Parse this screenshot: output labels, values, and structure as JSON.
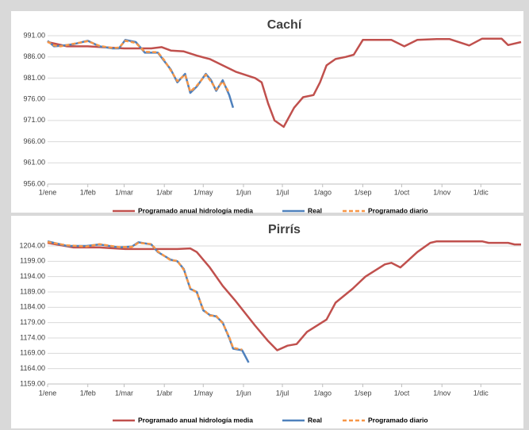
{
  "chart_data": [
    {
      "type": "line",
      "title": "Cachí",
      "xlim": [
        0,
        365
      ],
      "xticks": [
        {
          "value": 0,
          "label": "1/ene"
        },
        {
          "value": 31,
          "label": "1/feb"
        },
        {
          "value": 59,
          "label": "1/mar"
        },
        {
          "value": 90,
          "label": "1/abr"
        },
        {
          "value": 120,
          "label": "1/may"
        },
        {
          "value": 151,
          "label": "1/jun"
        },
        {
          "value": 181,
          "label": "1/jul"
        },
        {
          "value": 212,
          "label": "1/ago"
        },
        {
          "value": 243,
          "label": "1/sep"
        },
        {
          "value": 273,
          "label": "1/oct"
        },
        {
          "value": 304,
          "label": "1/nov"
        },
        {
          "value": 334,
          "label": "1/dic"
        }
      ],
      "ylim": [
        956,
        991
      ],
      "yticks": [
        {
          "value": 956,
          "label": "956.00"
        },
        {
          "value": 961,
          "label": "961.00"
        },
        {
          "value": 966,
          "label": "966.00"
        },
        {
          "value": 971,
          "label": "971.00"
        },
        {
          "value": 976,
          "label": "976.00"
        },
        {
          "value": 981,
          "label": "981.00"
        },
        {
          "value": 986,
          "label": "986.00"
        },
        {
          "value": 991,
          "label": "991.00"
        }
      ],
      "grid": true,
      "legend": "bottom",
      "series": [
        {
          "name": "Programado anual hidrología media",
          "color": "#c0504d",
          "dashed": false,
          "x": [
            0,
            15,
            31,
            59,
            80,
            88,
            95,
            105,
            115,
            125,
            135,
            145,
            160,
            165,
            170,
            175,
            182,
            190,
            197,
            205,
            210,
            215,
            222,
            230,
            236,
            243,
            255,
            265,
            275,
            285,
            300,
            310,
            325,
            335,
            350,
            355,
            365
          ],
          "values": [
            989.5,
            988.5,
            988.5,
            988,
            988,
            988.3,
            987.5,
            987.3,
            986.3,
            985.5,
            984,
            982.5,
            981,
            980,
            975,
            971,
            969.5,
            974,
            976.5,
            977,
            980,
            984,
            985.5,
            986,
            986.5,
            990,
            990,
            990,
            988.5,
            990,
            990.2,
            990.2,
            988.7,
            990.3,
            990.3,
            988.8,
            989.5
          ]
        },
        {
          "name": "Real",
          "color": "#4f81bd",
          "dashed": false,
          "x": [
            0,
            5,
            10,
            20,
            31,
            40,
            50,
            55,
            60,
            68,
            75,
            85,
            90,
            95,
            100,
            106,
            110,
            115,
            122,
            126,
            130,
            135,
            140,
            143
          ],
          "values": [
            989.8,
            988.5,
            988.6,
            989,
            989.8,
            988.5,
            988,
            988,
            990,
            989.5,
            987,
            987,
            985,
            983,
            980,
            982,
            977.5,
            979,
            982,
            980.5,
            978,
            980.5,
            977,
            974
          ]
        },
        {
          "name": "Programado diario",
          "color": "#f79646",
          "dashed": true,
          "x": [
            0,
            5,
            10,
            20,
            31,
            40,
            50,
            55,
            60,
            68,
            75,
            85,
            90,
            95,
            100,
            106,
            110,
            115,
            122,
            126,
            130,
            135,
            140
          ],
          "values": [
            989.6,
            988.7,
            988.5,
            989.1,
            989.7,
            988.6,
            988.1,
            988.2,
            989.8,
            989.3,
            987.2,
            987.1,
            985.2,
            982.8,
            980.3,
            981.8,
            977.8,
            979.2,
            981.8,
            980.2,
            978.3,
            980.2,
            977.5
          ]
        }
      ]
    },
    {
      "type": "line",
      "title": "Pirrís",
      "xlim": [
        0,
        365
      ],
      "xticks": [
        {
          "value": 0,
          "label": "1/ene"
        },
        {
          "value": 31,
          "label": "1/feb"
        },
        {
          "value": 59,
          "label": "1/mar"
        },
        {
          "value": 90,
          "label": "1/abr"
        },
        {
          "value": 120,
          "label": "1/may"
        },
        {
          "value": 151,
          "label": "1/jun"
        },
        {
          "value": 181,
          "label": "1/jul"
        },
        {
          "value": 212,
          "label": "1/ago"
        },
        {
          "value": 243,
          "label": "1/sep"
        },
        {
          "value": 273,
          "label": "1/oct"
        },
        {
          "value": 304,
          "label": "1/nov"
        },
        {
          "value": 334,
          "label": "1/dic"
        }
      ],
      "ylim": [
        1159,
        1204
      ],
      "yticks": [
        {
          "value": 1159,
          "label": "1159.00"
        },
        {
          "value": 1164,
          "label": "1164.00"
        },
        {
          "value": 1169,
          "label": "1169.00"
        },
        {
          "value": 1174,
          "label": "1174.00"
        },
        {
          "value": 1179,
          "label": "1179.00"
        },
        {
          "value": 1184,
          "label": "1184.00"
        },
        {
          "value": 1189,
          "label": "1189.00"
        },
        {
          "value": 1194,
          "label": "1194.00"
        },
        {
          "value": 1199,
          "label": "1199.00"
        },
        {
          "value": 1204,
          "label": "1204.00"
        }
      ],
      "grid": true,
      "legend": "bottom",
      "series": [
        {
          "name": "Programado anual hidrología media",
          "color": "#c0504d",
          "dashed": false,
          "x": [
            0,
            20,
            40,
            60,
            80,
            100,
            110,
            115,
            125,
            135,
            145,
            160,
            170,
            177,
            185,
            192,
            200,
            215,
            222,
            235,
            245,
            260,
            265,
            272,
            285,
            295,
            300,
            335,
            340,
            355,
            360,
            365
          ],
          "values": [
            1205,
            1203.5,
            1203.5,
            1203,
            1203,
            1203,
            1203.2,
            1202,
            1197,
            1191,
            1186,
            1178,
            1173,
            1170,
            1171.5,
            1172,
            1176,
            1180,
            1185.5,
            1190,
            1194,
            1198,
            1198.5,
            1197,
            1202,
            1205,
            1205.5,
            1205.5,
            1205,
            1205,
            1204.5,
            1204.5
          ]
        },
        {
          "name": "Real",
          "color": "#4f81bd",
          "dashed": false,
          "x": [
            0,
            15,
            30,
            40,
            55,
            65,
            70,
            80,
            85,
            95,
            100,
            105,
            110,
            115,
            120,
            125,
            130,
            135,
            140,
            143,
            150,
            155
          ],
          "values": [
            1205.5,
            1204,
            1204,
            1204.5,
            1203.5,
            1203.8,
            1205.2,
            1204.5,
            1202,
            1199.5,
            1199,
            1196.5,
            1190,
            1189,
            1183,
            1181.5,
            1181,
            1179,
            1174,
            1170.5,
            1170,
            1166
          ]
        },
        {
          "name": "Programado diario",
          "color": "#f79646",
          "dashed": true,
          "x": [
            0,
            15,
            30,
            40,
            55,
            65,
            70,
            80,
            85,
            95,
            100,
            105,
            110,
            115,
            120,
            125,
            130,
            135,
            140,
            143,
            150
          ],
          "values": [
            1205.3,
            1204.2,
            1203.8,
            1204.6,
            1203.6,
            1203.7,
            1205,
            1204.6,
            1202.2,
            1199.3,
            1199.2,
            1196.2,
            1190.3,
            1188.8,
            1183.3,
            1181.3,
            1181.2,
            1178.8,
            1174.3,
            1170.8,
            1170.2
          ]
        }
      ]
    }
  ]
}
